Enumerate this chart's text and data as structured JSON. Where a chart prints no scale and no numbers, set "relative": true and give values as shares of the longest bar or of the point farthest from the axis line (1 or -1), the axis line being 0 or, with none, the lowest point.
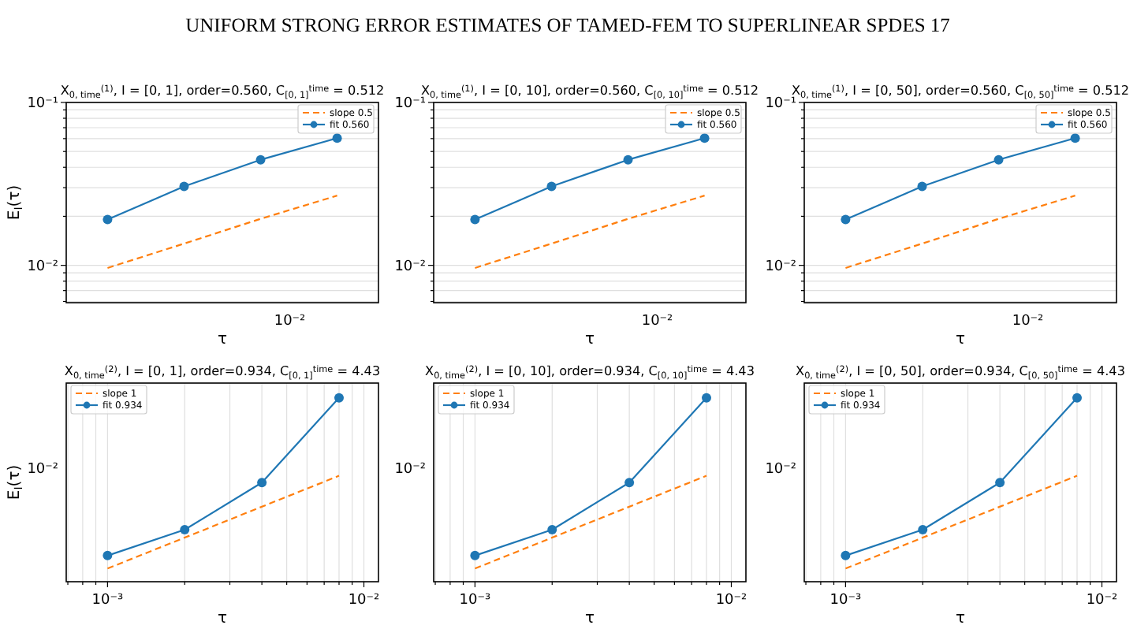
{
  "chart_data": [
    {
      "type": "line",
      "title": "X$_{0, time}$$^{(1)}$, I = [0, 1], order=0.560, C$_{[0, 1]}$$^{time}$ = 0.512",
      "xlabel": "τ",
      "ylabel": "E$_{I}$(τ)",
      "log": "y",
      "grid": "y",
      "legend": "top right",
      "annotations": [
        "10⁻²",
        "UNIFORM STRONG ERROR ESTIMATES OF TAMED-FEM TO SUPERLINEAR SPDES   17"
      ],
      "categories": [
        null,
        null,
        null,
        null
      ],
      "series": [
        {
          "name": "slope 0.5",
          "color": "#ff7f0e",
          "line_style": "dashed",
          "marker": "none",
          "values": [
            0.00964,
            0.0136,
            0.0193,
            0.0268
          ]
        },
        {
          "name": "fit 0.560",
          "color": "#1f77b4",
          "line_style": "solid",
          "marker": "circle",
          "values": [
            0.0191,
            0.0305,
            0.0445,
            0.0604
          ]
        }
      ],
      "ylim": [
        0.0059,
        0.1
      ],
      "yticks": [
        {
          "value": 0.006,
          "label": null
        },
        {
          "value": 0.007,
          "label": null
        },
        {
          "value": 0.008,
          "label": null
        },
        {
          "value": 0.009,
          "label": null
        },
        {
          "value": 0.01,
          "label": "10⁻²"
        },
        {
          "value": 0.02,
          "label": null
        },
        {
          "value": 0.03,
          "label": null
        },
        {
          "value": 0.04,
          "label": null
        },
        {
          "value": 0.05,
          "label": null
        },
        {
          "value": 0.06,
          "label": null
        },
        {
          "value": 0.07,
          "label": null
        },
        {
          "value": 0.08,
          "label": null
        },
        {
          "value": 0.09,
          "label": null
        },
        {
          "value": 0.1,
          "label": "10⁻¹"
        }
      ]
    },
    {
      "type": "line",
      "title": "X$_{0, time}$$^{(1)}$, I = [0, 10], order=0.560, C$_{[0, 10]}$$^{time}$ = 0.512",
      "xlabel": "τ",
      "log": "y",
      "grid": "y",
      "legend": "top right",
      "annotations": [
        "10⁻²"
      ],
      "categories": [
        null,
        null,
        null,
        null
      ],
      "series": [
        {
          "name": "slope 0.5",
          "color": "#ff7f0e",
          "line_style": "dashed",
          "marker": "none",
          "values": [
            0.00964,
            0.0136,
            0.0193,
            0.0268
          ]
        },
        {
          "name": "fit 0.560",
          "color": "#1f77b4",
          "line_style": "solid",
          "marker": "circle",
          "values": [
            0.0191,
            0.0305,
            0.0445,
            0.0604
          ]
        }
      ],
      "ylim": [
        0.0059,
        0.1
      ],
      "yticks": [
        {
          "value": 0.006,
          "label": null
        },
        {
          "value": 0.007,
          "label": null
        },
        {
          "value": 0.008,
          "label": null
        },
        {
          "value": 0.009,
          "label": null
        },
        {
          "value": 0.01,
          "label": "10⁻²"
        },
        {
          "value": 0.02,
          "label": null
        },
        {
          "value": 0.03,
          "label": null
        },
        {
          "value": 0.04,
          "label": null
        },
        {
          "value": 0.05,
          "label": null
        },
        {
          "value": 0.06,
          "label": null
        },
        {
          "value": 0.07,
          "label": null
        },
        {
          "value": 0.08,
          "label": null
        },
        {
          "value": 0.09,
          "label": null
        },
        {
          "value": 0.1,
          "label": "10⁻¹"
        }
      ]
    },
    {
      "type": "line",
      "title": "X$_{0, time}$$^{(1)}$, I = [0, 50], order=0.560, C$_{[0, 50]}$$^{time}$ = 0.512",
      "xlabel": "τ",
      "log": "y",
      "grid": "y",
      "legend": "top right",
      "annotations": [
        "10⁻²"
      ],
      "categories": [
        null,
        null,
        null,
        null
      ],
      "series": [
        {
          "name": "slope 0.5",
          "color": "#ff7f0e",
          "line_style": "dashed",
          "marker": "none",
          "values": [
            0.00964,
            0.0136,
            0.0193,
            0.0268
          ]
        },
        {
          "name": "fit 0.560",
          "color": "#1f77b4",
          "line_style": "solid",
          "marker": "circle",
          "values": [
            0.0191,
            0.0305,
            0.0445,
            0.0604
          ]
        }
      ],
      "ylim": [
        0.0059,
        0.1
      ],
      "yticks": [
        {
          "value": 0.006,
          "label": null
        },
        {
          "value": 0.007,
          "label": null
        },
        {
          "value": 0.008,
          "label": null
        },
        {
          "value": 0.009,
          "label": null
        },
        {
          "value": 0.01,
          "label": "10⁻²"
        },
        {
          "value": 0.02,
          "label": null
        },
        {
          "value": 0.03,
          "label": null
        },
        {
          "value": 0.04,
          "label": null
        },
        {
          "value": 0.05,
          "label": null
        },
        {
          "value": 0.06,
          "label": null
        },
        {
          "value": 0.07,
          "label": null
        },
        {
          "value": 0.08,
          "label": null
        },
        {
          "value": 0.09,
          "label": null
        },
        {
          "value": 0.1,
          "label": "10⁻¹"
        }
      ]
    },
    {
      "type": "line",
      "title": "X$_{0, time}$$^{(2)}$, I = [0, 1], order=0.934, C$_{[0, 1]}$$^{time}$ = 4.43",
      "xlabel": "τ",
      "ylabel": "E$_{I}$(τ)",
      "log": "x",
      "grid": "x",
      "legend": "top left",
      "relative": true,
      "annotations": [
        "10⁻²"
      ],
      "x": [
        0.001,
        0.002,
        0.004,
        0.008
      ],
      "series": [
        {
          "name": "slope 1",
          "color": "#ff7f0e",
          "line_style": "dashed",
          "marker": "none",
          "values": [
            0.0717,
            null,
            null,
            0.576
          ]
        },
        {
          "name": "fit 0.934",
          "color": "#1f77b4",
          "line_style": "solid",
          "marker": "circle",
          "values": [
            0.142,
            0.283,
            0.539,
            1
          ]
        }
      ],
      "xlim": [
        0.00069,
        0.0114
      ],
      "xticks": [
        {
          "value": 0.0007,
          "label": null
        },
        {
          "value": 0.0008,
          "label": null
        },
        {
          "value": 0.0009,
          "label": null
        },
        {
          "value": 0.001,
          "label": "10⁻³"
        },
        {
          "value": 0.002,
          "label": null
        },
        {
          "value": 0.003,
          "label": null
        },
        {
          "value": 0.004,
          "label": null
        },
        {
          "value": 0.005,
          "label": null
        },
        {
          "value": 0.006,
          "label": null
        },
        {
          "value": 0.007,
          "label": null
        },
        {
          "value": 0.008,
          "label": null
        },
        {
          "value": 0.009,
          "label": null
        },
        {
          "value": 0.01,
          "label": "10⁻²"
        }
      ]
    },
    {
      "type": "line",
      "title": "X$_{0, time}$$^{(2)}$, I = [0, 10], order=0.934, C$_{[0, 10]}$$^{time}$ = 4.43",
      "xlabel": "τ",
      "log": "x",
      "grid": "x",
      "legend": "top left",
      "relative": true,
      "annotations": [
        "10⁻²"
      ],
      "x": [
        0.001,
        0.002,
        0.004,
        0.008
      ],
      "series": [
        {
          "name": "slope 1",
          "color": "#ff7f0e",
          "line_style": "dashed",
          "marker": "none",
          "values": [
            0.0717,
            null,
            null,
            0.576
          ]
        },
        {
          "name": "fit 0.934",
          "color": "#1f77b4",
          "line_style": "solid",
          "marker": "circle",
          "values": [
            0.142,
            0.283,
            0.539,
            1
          ]
        }
      ],
      "xlim": [
        0.00069,
        0.0114
      ],
      "xticks": [
        {
          "value": 0.0007,
          "label": null
        },
        {
          "value": 0.0008,
          "label": null
        },
        {
          "value": 0.0009,
          "label": null
        },
        {
          "value": 0.001,
          "label": "10⁻³"
        },
        {
          "value": 0.002,
          "label": null
        },
        {
          "value": 0.003,
          "label": null
        },
        {
          "value": 0.004,
          "label": null
        },
        {
          "value": 0.005,
          "label": null
        },
        {
          "value": 0.006,
          "label": null
        },
        {
          "value": 0.007,
          "label": null
        },
        {
          "value": 0.008,
          "label": null
        },
        {
          "value": 0.009,
          "label": null
        },
        {
          "value": 0.01,
          "label": "10⁻²"
        }
      ]
    },
    {
      "type": "line",
      "title": "X$_{0, time}$$^{(2)}$, I = [0, 50], order=0.934, C$_{[0, 50]}$$^{time}$ = 4.43",
      "xlabel": "τ",
      "log": "x",
      "grid": "x",
      "legend": "top left",
      "relative": true,
      "annotations": [
        "10⁻²"
      ],
      "x": [
        0.001,
        0.002,
        0.004,
        0.008
      ],
      "series": [
        {
          "name": "slope 1",
          "color": "#ff7f0e",
          "line_style": "dashed",
          "marker": "none",
          "values": [
            0.0717,
            null,
            null,
            0.576
          ]
        },
        {
          "name": "fit 0.934",
          "color": "#1f77b4",
          "line_style": "solid",
          "marker": "circle",
          "values": [
            0.142,
            0.283,
            0.539,
            1
          ]
        }
      ],
      "xlim": [
        0.00069,
        0.0114
      ],
      "xticks": [
        {
          "value": 0.0007,
          "label": null
        },
        {
          "value": 0.0008,
          "label": null
        },
        {
          "value": 0.0009,
          "label": null
        },
        {
          "value": 0.001,
          "label": "10⁻³"
        },
        {
          "value": 0.002,
          "label": null
        },
        {
          "value": 0.003,
          "label": null
        },
        {
          "value": 0.004,
          "label": null
        },
        {
          "value": 0.005,
          "label": null
        },
        {
          "value": 0.006,
          "label": null
        },
        {
          "value": 0.007,
          "label": null
        },
        {
          "value": 0.008,
          "label": null
        },
        {
          "value": 0.009,
          "label": null
        },
        {
          "value": 0.01,
          "label": "10⁻²"
        }
      ]
    }
  ]
}
